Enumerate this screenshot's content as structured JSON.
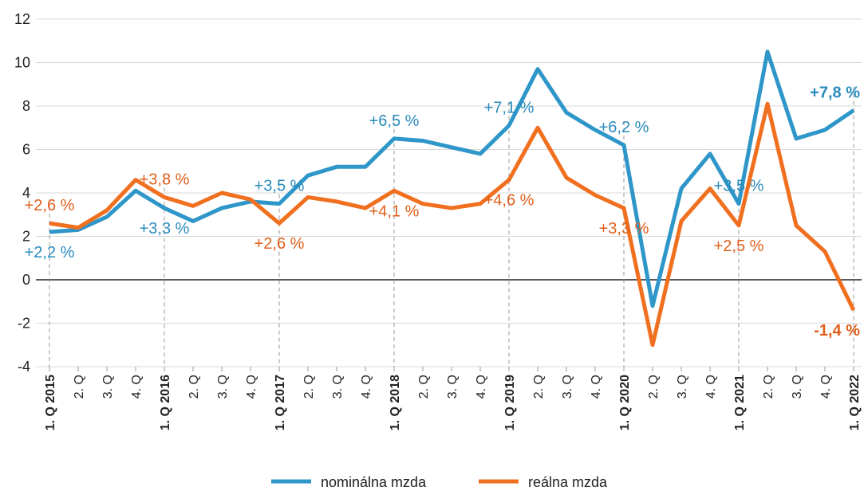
{
  "chart_data": {
    "type": "line",
    "categories": [
      "1. Q 2015",
      "2. Q",
      "3. Q",
      "4. Q",
      "1. Q 2016",
      "2. Q",
      "3. Q",
      "4. Q",
      "1. Q 2017",
      "2. Q",
      "3. Q",
      "4. Q",
      "1. Q 2018",
      "2. Q",
      "3. Q",
      "4. Q",
      "1. Q 2019",
      "2. Q",
      "3. Q",
      "4. Q",
      "1. Q 2020",
      "2. Q",
      "3. Q",
      "4. Q",
      "1. Q 2021",
      "2. Q",
      "3. Q",
      "4. Q",
      "1. Q 2022"
    ],
    "series": [
      {
        "name": "nominálna mzda",
        "color": "#2e96c8",
        "values": [
          2.2,
          2.3,
          2.9,
          4.1,
          3.3,
          2.7,
          3.3,
          3.6,
          3.5,
          4.8,
          5.2,
          5.2,
          6.5,
          6.4,
          6.1,
          5.8,
          7.1,
          9.7,
          7.7,
          6.9,
          6.2,
          -1.2,
          4.2,
          5.8,
          3.5,
          10.5,
          6.5,
          6.9,
          7.8
        ],
        "value_labels": [
          "+2,2 %",
          null,
          null,
          null,
          "+3,3 %",
          null,
          null,
          null,
          "+3,5 %",
          null,
          null,
          null,
          "+6,5 %",
          null,
          null,
          null,
          "+7,1 %",
          null,
          null,
          null,
          "+6,2 %",
          null,
          null,
          null,
          "+3,5 %",
          null,
          null,
          null,
          "+7,8 %"
        ]
      },
      {
        "name": "reálna mzda",
        "color": "#f07020",
        "values": [
          2.6,
          2.4,
          3.2,
          4.6,
          3.8,
          3.4,
          4.0,
          3.7,
          2.6,
          3.8,
          3.6,
          3.3,
          4.1,
          3.5,
          3.3,
          3.5,
          4.6,
          7.0,
          4.7,
          3.9,
          3.3,
          -3.0,
          2.7,
          4.2,
          2.5,
          8.1,
          2.5,
          1.3,
          -1.4
        ],
        "value_labels": [
          "+2,6 %",
          null,
          null,
          null,
          "+3,8 %",
          null,
          null,
          null,
          "+2,6 %",
          null,
          null,
          null,
          "+4,1 %",
          null,
          null,
          null,
          "+4,6 %",
          null,
          null,
          null,
          "+3,3 %",
          null,
          null,
          null,
          "+2,5 %",
          null,
          null,
          null,
          "-1,4 %"
        ]
      }
    ],
    "ylim": [
      -4,
      12
    ],
    "yticks": [
      -4,
      -2,
      0,
      2,
      4,
      6,
      8,
      10,
      12
    ],
    "grid": true,
    "legend": "bottom"
  }
}
